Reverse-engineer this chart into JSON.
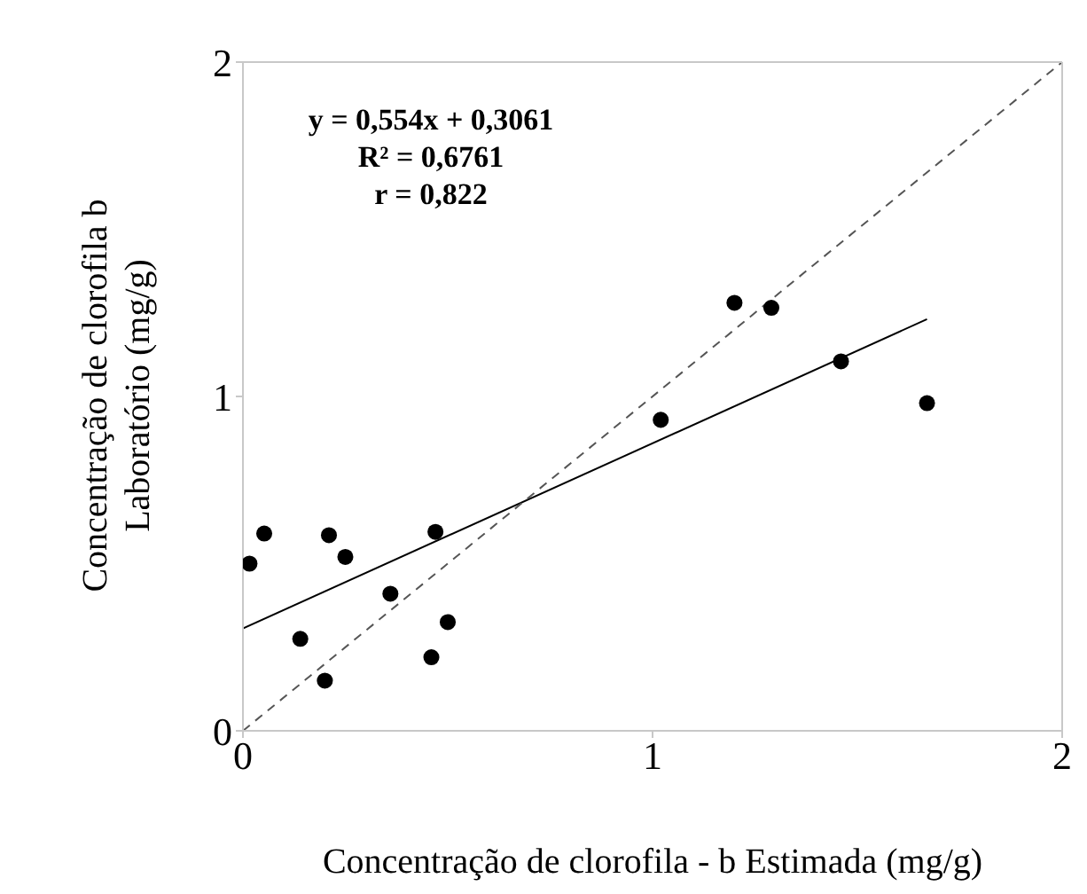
{
  "chart_data": {
    "type": "scatter",
    "xlabel": "Concentração de clorofila - b  Estimada (mg/g)",
    "ylabel": "Concentração de clorofila b\nLaboratório (mg/g)",
    "xlim": [
      0,
      2
    ],
    "ylim": [
      0,
      2
    ],
    "xticks": [
      0,
      1,
      2
    ],
    "yticks": [
      0,
      1,
      2
    ],
    "grid": false,
    "marker": "circle",
    "series": [
      {
        "color": "#000000",
        "x": [
          0.016,
          0.052,
          0.14,
          0.2,
          0.21,
          0.25,
          0.36,
          0.46,
          0.47,
          0.5,
          1.02,
          1.2,
          1.29,
          1.46,
          1.67
        ],
        "values": [
          0.5,
          0.59,
          0.275,
          0.15,
          0.585,
          0.52,
          0.41,
          0.22,
          0.595,
          0.325,
          0.93,
          1.28,
          1.265,
          1.105,
          0.98
        ]
      },
      {
        "type": "line",
        "color": "#000000",
        "line_style": "solid",
        "marker": "none",
        "x": [
          0,
          1.67
        ],
        "values": [
          0.306,
          1.231
        ]
      },
      {
        "type": "line",
        "color": "#555555",
        "line_style": "dashed",
        "marker": "none",
        "x": [
          0,
          2
        ],
        "values": [
          0,
          2
        ]
      }
    ],
    "annotations": [
      "y = 0,554x + 0,3061",
      "R² = 0,6761",
      "r = 0,822"
    ]
  }
}
